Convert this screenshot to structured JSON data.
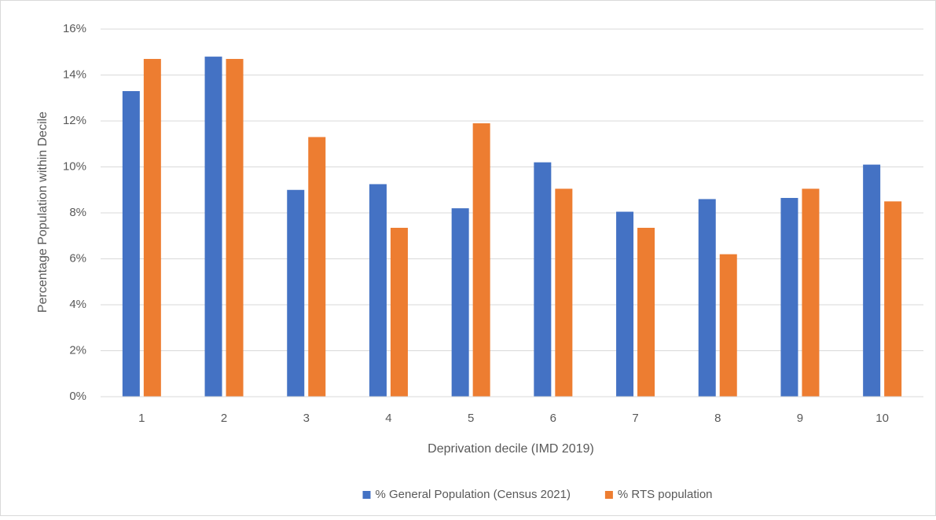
{
  "chart_data": {
    "type": "bar",
    "x_label": "Deprivation  decile (IMD 2019)",
    "y_label": "Percentage Population within Decile",
    "categories": [
      "1",
      "2",
      "3",
      "4",
      "5",
      "6",
      "7",
      "8",
      "9",
      "10"
    ],
    "series": [
      {
        "name": "% General Population (Census 2021)",
        "color": "#4472c4",
        "values": [
          13.3,
          14.8,
          9.0,
          9.25,
          8.2,
          10.2,
          8.05,
          8.6,
          8.65,
          10.1
        ]
      },
      {
        "name": "% RTS population",
        "color": "#ed7d31",
        "values": [
          14.7,
          14.7,
          11.3,
          7.35,
          11.9,
          9.05,
          7.35,
          6.2,
          9.05,
          8.5
        ]
      }
    ],
    "ylim": [
      0,
      16
    ],
    "yticks": [
      {
        "value": 0,
        "label": "0%"
      },
      {
        "value": 2,
        "label": "2%"
      },
      {
        "value": 4,
        "label": "4%"
      },
      {
        "value": 6,
        "label": "6%"
      },
      {
        "value": 8,
        "label": "8%"
      },
      {
        "value": 10,
        "label": "10%"
      },
      {
        "value": 12,
        "label": "12%"
      },
      {
        "value": 14,
        "label": "14%"
      },
      {
        "value": 16,
        "label": "16%"
      }
    ],
    "grid": true,
    "legend": "bottom"
  }
}
